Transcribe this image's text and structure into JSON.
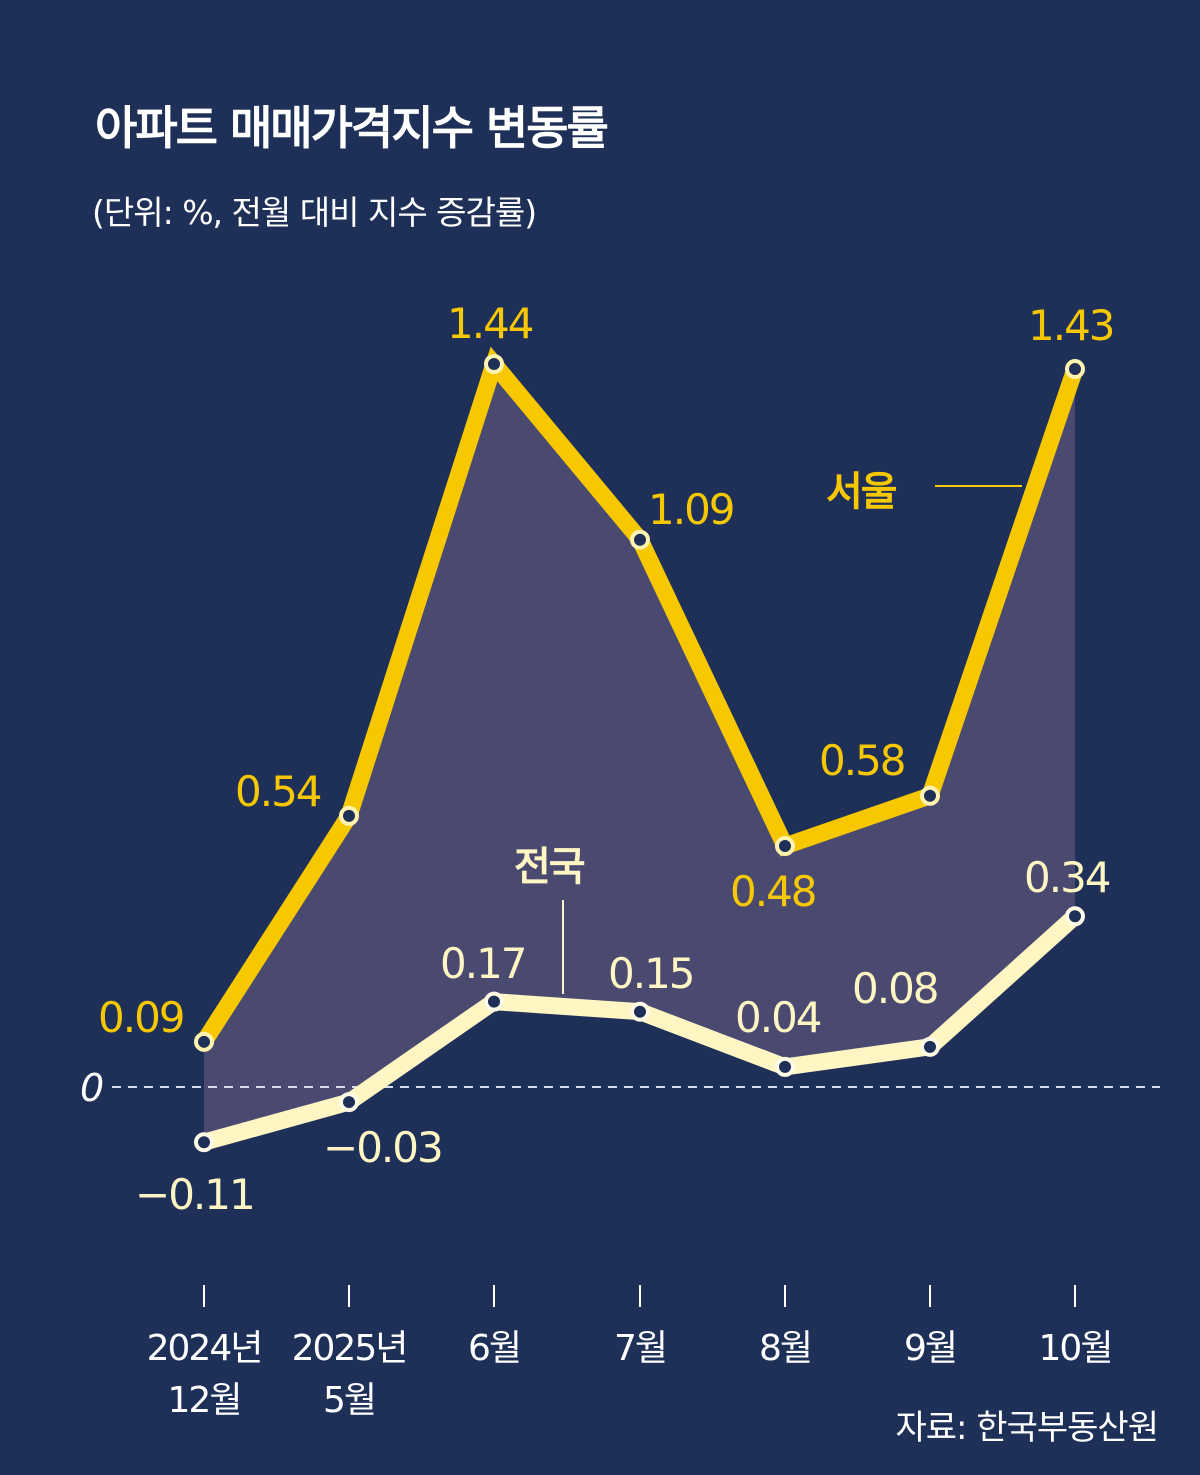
{
  "title": "아파트 매매가격지수 변동률",
  "subtitle": "(단위: %, 전월 대비 지수 증감률)",
  "source": "자료: 한국부동산원",
  "colors": {
    "background": "#1e3057",
    "seoul": "#f7c800",
    "national": "#fff6c4",
    "fill": "#4a4a70",
    "text": "#ffffff"
  },
  "chart_data": {
    "type": "line",
    "categories": [
      [
        "2024년",
        "12월"
      ],
      [
        "2025년",
        "5월"
      ],
      [
        "6월"
      ],
      [
        "7월"
      ],
      [
        "8월"
      ],
      [
        "9월"
      ],
      [
        "10월"
      ]
    ],
    "zero_label": "0",
    "series": [
      {
        "name": "서울",
        "values": [
          0.09,
          0.54,
          1.44,
          1.09,
          0.48,
          0.58,
          1.43
        ],
        "labels": [
          "0.09",
          "0.54",
          "1.44",
          "1.09",
          "0.48",
          "0.58",
          "1.43"
        ]
      },
      {
        "name": "전국",
        "values": [
          -0.11,
          -0.03,
          0.17,
          0.15,
          0.04,
          0.08,
          0.34
        ],
        "labels": [
          "−0.11",
          "−0.03",
          "0.17",
          "0.15",
          "0.04",
          "0.08",
          "0.34"
        ]
      }
    ],
    "ylim": [
      -0.11,
      1.44
    ],
    "grid": false,
    "legend": "inline"
  }
}
